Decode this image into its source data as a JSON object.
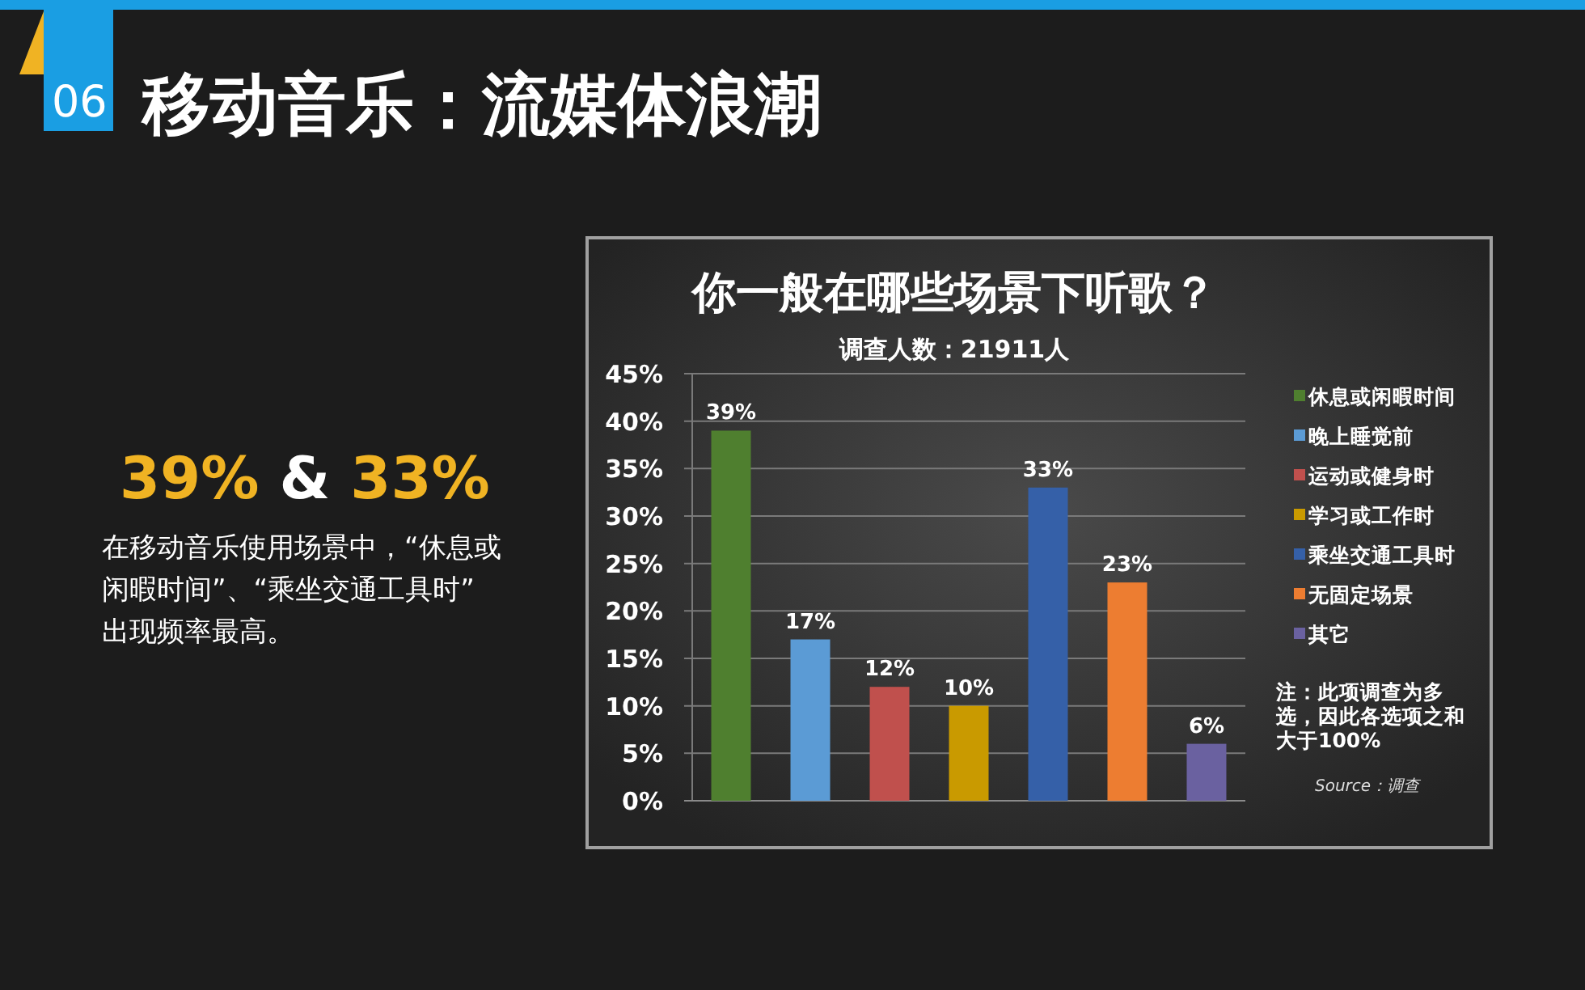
{
  "chart_data": {
    "type": "bar",
    "title": "你一般在哪些场景下听歌？",
    "subtitle": "调查人数：21911人",
    "categories": [
      null,
      null,
      null,
      null,
      null,
      null,
      null
    ],
    "series": [
      {
        "name": "休息或闲暇时间",
        "color": "#4f7f2f",
        "values": [
          39,
          null,
          null,
          null,
          null,
          null,
          null
        ],
        "value_labels": [
          "39%",
          null,
          null,
          null,
          null,
          null,
          null
        ]
      },
      {
        "name": "晚上睡觉前",
        "color": "#5b9bd5",
        "values": [
          null,
          17,
          null,
          null,
          null,
          null,
          null
        ],
        "value_labels": [
          null,
          "17%",
          null,
          null,
          null,
          null,
          null
        ]
      },
      {
        "name": "运动或健身时",
        "color": "#c0504d",
        "values": [
          null,
          null,
          12,
          null,
          null,
          null,
          null
        ],
        "value_labels": [
          null,
          null,
          "12%",
          null,
          null,
          null,
          null
        ]
      },
      {
        "name": "学习或工作时",
        "color": "#c99a00",
        "values": [
          null,
          null,
          null,
          10,
          null,
          null,
          null
        ],
        "value_labels": [
          null,
          null,
          null,
          "10%",
          null,
          null,
          null
        ]
      },
      {
        "name": "乘坐交通工具时",
        "color": "#3560a8",
        "values": [
          null,
          null,
          null,
          null,
          33,
          null,
          null
        ],
        "value_labels": [
          null,
          null,
          null,
          null,
          "33%",
          null,
          null
        ]
      },
      {
        "name": "无固定场景",
        "color": "#ed7d31",
        "values": [
          null,
          null,
          null,
          null,
          null,
          23,
          null
        ],
        "value_labels": [
          null,
          null,
          null,
          null,
          null,
          "23%",
          null
        ]
      },
      {
        "name": "其它",
        "color": "#6a61a0",
        "values": [
          null,
          null,
          null,
          null,
          null,
          null,
          6
        ],
        "value_labels": [
          null,
          null,
          null,
          null,
          null,
          null,
          "6%"
        ]
      }
    ],
    "ylim": [
      0,
      45
    ],
    "yticks": [
      {
        "value": 0,
        "label": "0%"
      },
      {
        "value": 5,
        "label": "5%"
      },
      {
        "value": 10,
        "label": "10%"
      },
      {
        "value": 15,
        "label": "15%"
      },
      {
        "value": 20,
        "label": "20%"
      },
      {
        "value": 25,
        "label": "25%"
      },
      {
        "value": 30,
        "label": "30%"
      },
      {
        "value": 35,
        "label": "35%"
      },
      {
        "value": 40,
        "label": "40%"
      },
      {
        "value": 45,
        "label": "45%"
      }
    ],
    "grid": "y",
    "legend": "right",
    "annotations": [
      "06",
      "移动音乐：流媒体浪潮",
      "39% & 33%",
      "在移动音乐使用场景中，“休息或闲暇时间”、“乘坐交通工具时”出现频率最高。",
      "注：此项调查为多选，因此各选项之和大于100%",
      "Source：调查"
    ]
  }
}
